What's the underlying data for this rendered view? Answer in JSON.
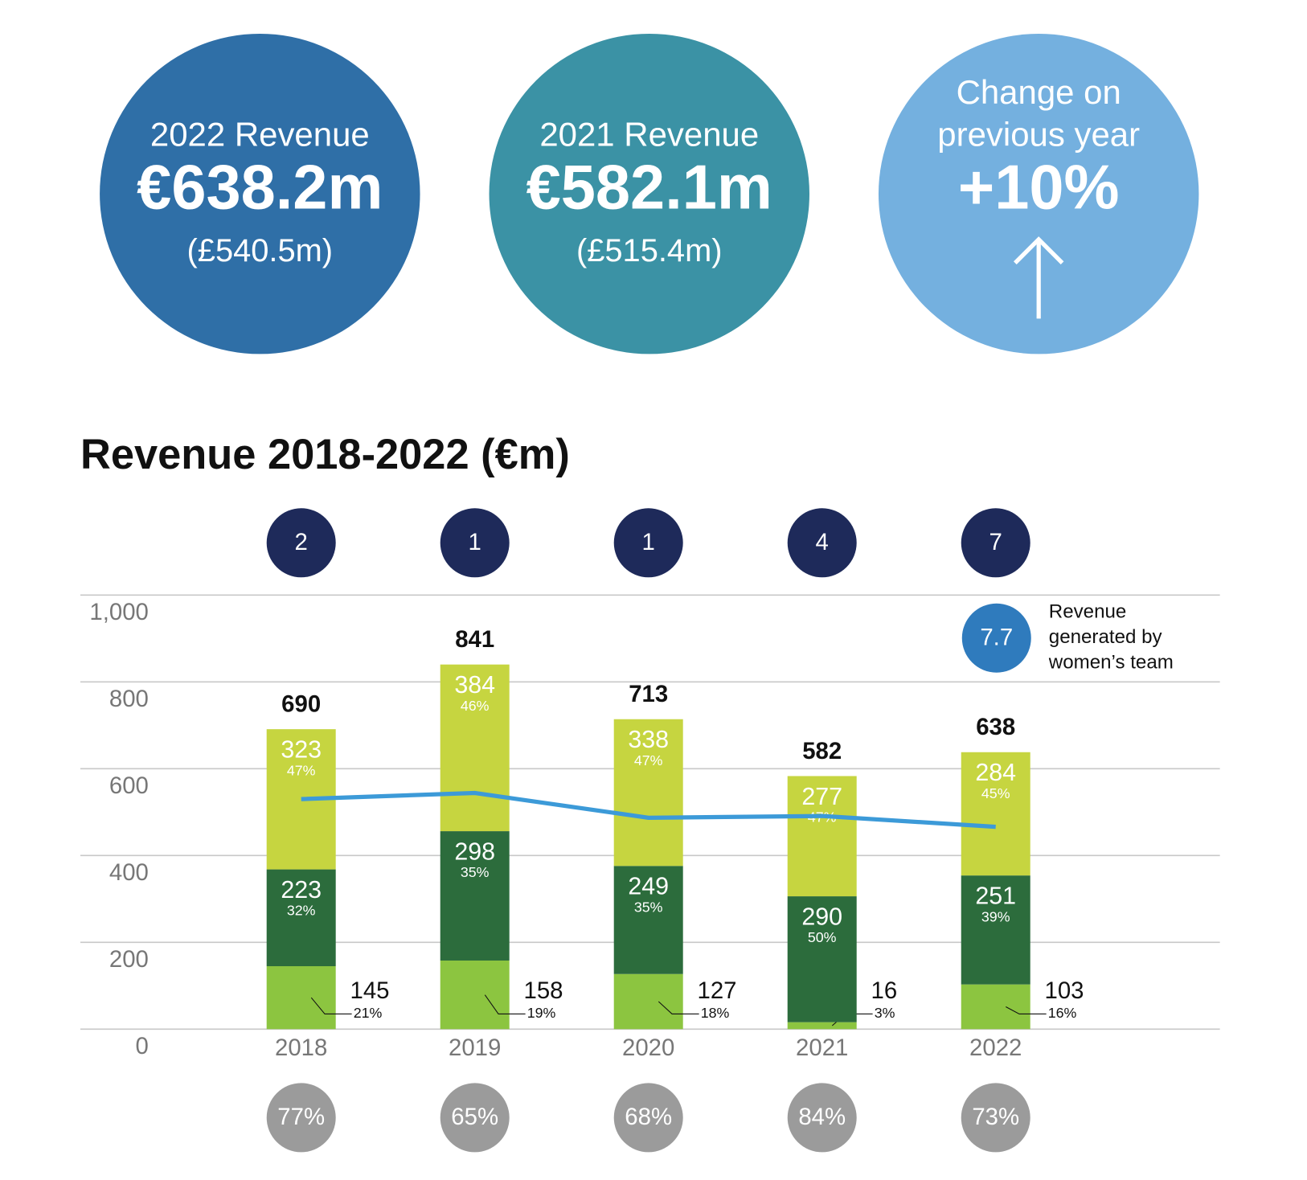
{
  "kpis": [
    {
      "title": "2022 Revenue",
      "value": "€638.2m",
      "sub": "(£540.5m)",
      "color": "#2f6fa7"
    },
    {
      "title": "2021 Revenue",
      "value": "€582.1m",
      "sub": "(£515.4m)",
      "color": "#3b92a5"
    },
    {
      "title": "Change on previous year",
      "value": "+10%",
      "color": "#74b0df"
    }
  ],
  "chart_data": {
    "type": "bar",
    "title": "Revenue 2018-2022 (€m)",
    "categories": [
      "2018",
      "2019",
      "2020",
      "2021",
      "2022"
    ],
    "series": [
      {
        "color": "#8cc540",
        "values": [
          145,
          158,
          127,
          16,
          103
        ],
        "shares": [
          "21%",
          "19%",
          "18%",
          "3%",
          "16%"
        ]
      },
      {
        "color": "#2c6c3c",
        "values": [
          223,
          298,
          249,
          290,
          251
        ],
        "shares": [
          "32%",
          "35%",
          "35%",
          "50%",
          "39%"
        ]
      },
      {
        "color": "#c6d540",
        "values": [
          323,
          384,
          338,
          277,
          284
        ],
        "shares": [
          "47%",
          "46%",
          "47%",
          "47%",
          "45%"
        ]
      }
    ],
    "totals": [
      690,
      841,
      713,
      582,
      638
    ],
    "line": {
      "color": "#3c9ad8",
      "values": [
        530,
        544,
        487,
        491,
        466
      ]
    },
    "top_badges": [
      2,
      1,
      1,
      4,
      7
    ],
    "bottom_badges": [
      "77%",
      "65%",
      "68%",
      "84%",
      "73%"
    ],
    "legend": {
      "value": 7.7,
      "label": "Revenue generated by women’s team",
      "color": "#2f7bbd"
    },
    "ylim": [
      0,
      1000
    ],
    "yticks": [
      0,
      200,
      400,
      600,
      800,
      {
        "value": 1000,
        "label": "1,000"
      }
    ],
    "grid": true
  }
}
